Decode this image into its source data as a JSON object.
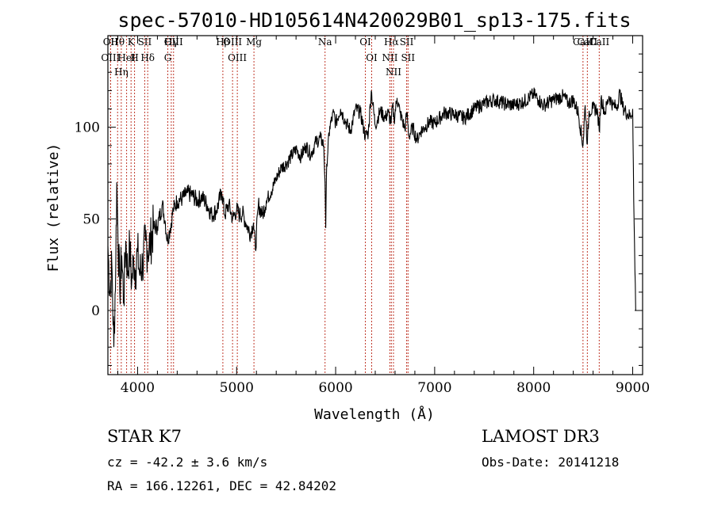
{
  "chart_data": {
    "type": "line",
    "title": "spec-57010-HD105614N420029B01_sp13-175.fits",
    "xlabel": "Wavelength (Å)",
    "ylabel": "Flux (relative)",
    "xlim": [
      3700,
      9100
    ],
    "ylim": [
      -35,
      150
    ],
    "xticks": [
      4000,
      5000,
      6000,
      7000,
      8000,
      9000
    ],
    "yticks": [
      0,
      50,
      100
    ],
    "grid": false,
    "series": [
      {
        "name": "flux",
        "x": [
          3700,
          3720,
          3740,
          3760,
          3780,
          3790,
          3800,
          3820,
          3840,
          3860,
          3880,
          3900,
          3920,
          3940,
          3960,
          3980,
          4000,
          4020,
          4050,
          4080,
          4100,
          4130,
          4160,
          4200,
          4250,
          4280,
          4300,
          4330,
          4360,
          4400,
          4450,
          4500,
          4550,
          4600,
          4650,
          4700,
          4750,
          4800,
          4850,
          4880,
          4920,
          4960,
          5000,
          5030,
          5060,
          5100,
          5140,
          5170,
          5190,
          5220,
          5260,
          5300,
          5350,
          5400,
          5450,
          5500,
          5550,
          5600,
          5650,
          5700,
          5750,
          5800,
          5850,
          5880,
          5893,
          5900,
          5910,
          5940,
          5980,
          6000,
          6050,
          6100,
          6150,
          6200,
          6250,
          6300,
          6330,
          6360,
          6400,
          6450,
          6500,
          6530,
          6560,
          6575,
          6590,
          6620,
          6650,
          6700,
          6720,
          6740,
          6780,
          6820,
          6860,
          6900,
          6950,
          7000,
          7100,
          7200,
          7300,
          7400,
          7500,
          7600,
          7700,
          7800,
          7900,
          8000,
          8050,
          8100,
          8200,
          8300,
          8350,
          8400,
          8450,
          8498,
          8520,
          8542,
          8560,
          8600,
          8640,
          8662,
          8680,
          8720,
          8760,
          8800,
          8840,
          8870,
          8900,
          8950,
          8980,
          9000,
          9010,
          9030
        ],
        "values": [
          35,
          10,
          25,
          -20,
          28,
          70,
          45,
          10,
          30,
          5,
          38,
          20,
          35,
          15,
          28,
          22,
          32,
          20,
          25,
          38,
          33,
          37,
          45,
          46,
          58,
          48,
          38,
          45,
          55,
          60,
          61,
          64,
          63,
          60,
          62,
          58,
          52,
          55,
          65,
          52,
          58,
          50,
          55,
          52,
          53,
          47,
          42,
          48,
          33,
          58,
          52,
          60,
          65,
          72,
          78,
          80,
          84,
          88,
          84,
          90,
          85,
          92,
          94,
          90,
          70,
          45,
          80,
          100,
          108,
          102,
          110,
          103,
          98,
          110,
          108,
          95,
          97,
          120,
          101,
          109,
          105,
          108,
          102,
          112,
          104,
          116,
          108,
          99,
          108,
          95,
          100,
          93,
          98,
          100,
          103,
          102,
          108,
          107,
          105,
          110,
          113,
          115,
          113,
          112,
          114,
          118,
          115,
          112,
          115,
          117,
          113,
          115,
          108,
          90,
          112,
          91,
          109,
          110,
          110,
          98,
          116,
          108,
          117,
          112,
          111,
          119,
          111,
          107,
          106,
          110,
          60,
          0
        ]
      }
    ],
    "spectral_lines": [
      {
        "name": "Hθ",
        "wave": 3798
      },
      {
        "name": "OII",
        "wave": 3727
      },
      {
        "name": "OIII",
        "wave": 3727
      },
      {
        "name": "K",
        "wave": 3934
      },
      {
        "name": "H",
        "wave": 3969
      },
      {
        "name": "HeI",
        "wave": 3889
      },
      {
        "name": "SII",
        "wave": 4072
      },
      {
        "name": "Hη",
        "wave": 3835
      },
      {
        "name": "Hδ",
        "wave": 4102
      },
      {
        "name": "OIII",
        "wave": 4363
      },
      {
        "name": "Hγ",
        "wave": 4340
      },
      {
        "name": "G",
        "wave": 4305
      },
      {
        "name": "Hβ",
        "wave": 4861
      },
      {
        "name": "OIII",
        "wave": 4959
      },
      {
        "name": "OIII",
        "wave": 5007
      },
      {
        "name": "Mg",
        "wave": 5175
      },
      {
        "name": "Na",
        "wave": 5893
      },
      {
        "name": "OI",
        "wave": 6300
      },
      {
        "name": "OI",
        "wave": 6364
      },
      {
        "name": "Hα",
        "wave": 6563
      },
      {
        "name": "NII",
        "wave": 6548
      },
      {
        "name": "NII",
        "wave": 6584
      },
      {
        "name": "SII",
        "wave": 6717
      },
      {
        "name": "SII",
        "wave": 6731
      },
      {
        "name": "CaII",
        "wave": 8498
      },
      {
        "name": "CaII",
        "wave": 8542
      },
      {
        "name": "CaII",
        "wave": 8662
      }
    ]
  },
  "info": {
    "class_line": "STAR    K7",
    "survey": "LAMOST DR3",
    "cz": "cz = -42.2 ± 3.6 km/s",
    "obs_date": "Obs-Date: 20141218",
    "coords": "RA = 166.12261, DEC =  42.84202"
  }
}
